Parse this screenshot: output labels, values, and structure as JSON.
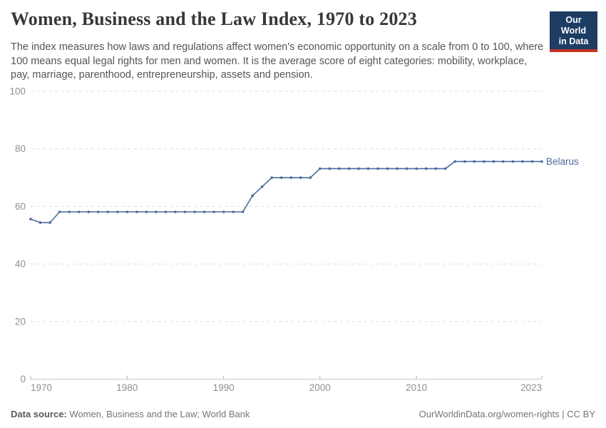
{
  "header": {
    "title": "Women, Business and the Law Index, 1970 to 2023",
    "subtitle": "The index measures how laws and regulations affect women's economic opportunity on a scale from 0 to 100, where 100 means equal legal rights for men and women. It is the average score of eight categories: mobility, workplace, pay, marriage, parenthood, entrepreneurship, assets and pension."
  },
  "logo": {
    "line1": "Our World",
    "line2": "in Data",
    "bg_color": "#1d3d63",
    "stripe_color": "#c5311f"
  },
  "footer": {
    "datasource_label": "Data source:",
    "datasource_value": " Women, Business and the Law; World Bank",
    "right": "OurWorldinData.org/women-rights | CC BY"
  },
  "chart_data": {
    "type": "line",
    "title": "Women, Business and the Law Index, 1970 to 2023",
    "xlabel": "",
    "ylabel": "",
    "xlim": [
      1970,
      2023
    ],
    "ylim": [
      0,
      100
    ],
    "xticks": [
      1970,
      1980,
      1990,
      2000,
      2010,
      2023
    ],
    "yticks": [
      0,
      20,
      40,
      60,
      80,
      100
    ],
    "grid": "horizontal dashed gridlines, solid baseline at 0",
    "legend_position": "label at right end of line",
    "colors": {
      "grid": "#dcdcdc",
      "axis": "#c8c8c8",
      "tick": "#b0b0b0",
      "tick_label": "#8f8f8f"
    },
    "series": [
      {
        "name": "Belarus",
        "color": "#4c6a9c",
        "x": [
          1970,
          1971,
          1972,
          1973,
          1974,
          1975,
          1976,
          1977,
          1978,
          1979,
          1980,
          1981,
          1982,
          1983,
          1984,
          1985,
          1986,
          1987,
          1988,
          1989,
          1990,
          1991,
          1992,
          1993,
          1994,
          1995,
          1996,
          1997,
          1998,
          1999,
          2000,
          2001,
          2002,
          2003,
          2004,
          2005,
          2006,
          2007,
          2008,
          2009,
          2010,
          2011,
          2012,
          2013,
          2014,
          2015,
          2016,
          2017,
          2018,
          2019,
          2020,
          2021,
          2022,
          2023
        ],
        "values": [
          55.625,
          54.375,
          54.375,
          58.125,
          58.125,
          58.125,
          58.125,
          58.125,
          58.125,
          58.125,
          58.125,
          58.125,
          58.125,
          58.125,
          58.125,
          58.125,
          58.125,
          58.125,
          58.125,
          58.125,
          58.125,
          58.125,
          58.125,
          63.75,
          66.875,
          70,
          70,
          70,
          70,
          70,
          73.125,
          73.125,
          73.125,
          73.125,
          73.125,
          73.125,
          73.125,
          73.125,
          73.125,
          73.125,
          73.125,
          73.125,
          73.125,
          73.125,
          75.625,
          75.625,
          75.625,
          75.625,
          75.625,
          75.625,
          75.625,
          75.625,
          75.625,
          75.625
        ]
      }
    ]
  }
}
